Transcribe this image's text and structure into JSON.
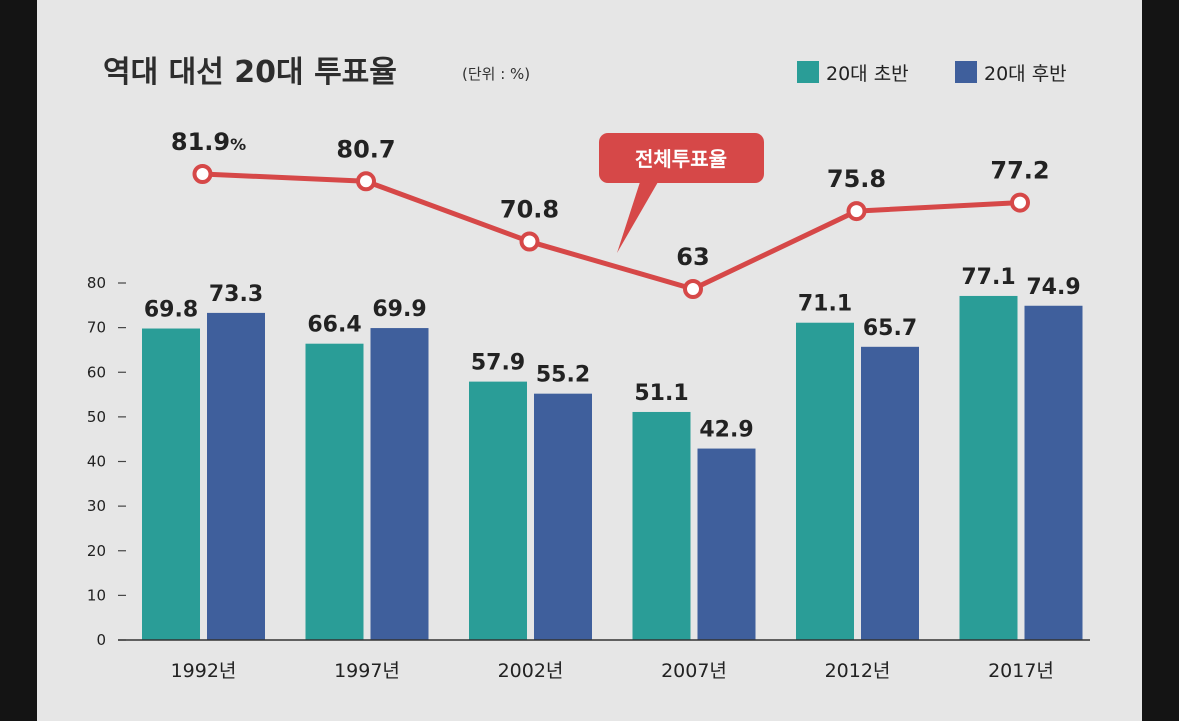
{
  "chart_data": {
    "type": "bar",
    "title": "역대 대선 20대 투표율",
    "unit_label": "(단위 : %)",
    "categories": [
      "1992년",
      "1997년",
      "2002년",
      "2007년",
      "2012년",
      "2017년"
    ],
    "series": [
      {
        "name": "20대 초반",
        "type": "bar",
        "color": "#2a9d97",
        "values": [
          69.8,
          66.4,
          57.9,
          51.1,
          71.1,
          77.1
        ]
      },
      {
        "name": "20대 후반",
        "type": "bar",
        "color": "#3f5f9c",
        "values": [
          73.3,
          69.9,
          55.2,
          42.9,
          65.7,
          74.9
        ]
      },
      {
        "name": "전체투표율",
        "type": "line",
        "color": "#d64848",
        "values": [
          81.9,
          80.7,
          70.8,
          63,
          75.8,
          77.2
        ],
        "value_labels": [
          "81.9",
          "80.7",
          "70.8",
          "63",
          "75.8",
          "77.2"
        ],
        "first_label_suffix": "%"
      }
    ],
    "yticks": [
      0,
      10,
      20,
      30,
      40,
      50,
      60,
      70,
      80
    ],
    "ylim": [
      0,
      80
    ],
    "legend_position": "top-right",
    "grid": false
  }
}
